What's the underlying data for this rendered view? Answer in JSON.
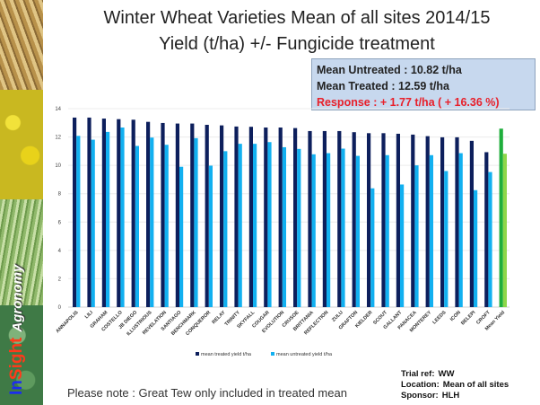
{
  "title_line1": "Winter Wheat Varieties Mean of all sites 2014/15",
  "title_line2": "Yield (t/ha) +/- Fungicide treatment",
  "summary": {
    "untreated": "Mean Untreated : 10.82 t/ha",
    "treated": "Mean Treated : 12.59 t/ha",
    "response": "Response : + 1.77 t/ha ( + 16.36 %)"
  },
  "logo": {
    "in": "In",
    "sight": "Sight",
    "agronomy": "Agronomy"
  },
  "note": "Please note : Great Tew only included in treated mean",
  "trial": {
    "ref_label": "Trial ref:",
    "ref_value": "WW",
    "location_label": "Location:",
    "location_value": "Mean of all sites",
    "sponsor_label": "Sponsor:",
    "sponsor_value": "HLH"
  },
  "colors": {
    "treated": "#0d1f5c",
    "untreated": "#12b0f0",
    "mean_treated": "#1fae3c",
    "mean_untreated": "#8ed64a",
    "response_text": "#e8202a",
    "summary_bg": "#c7d8ee"
  },
  "chart_data": {
    "type": "bar",
    "title": "",
    "xlabel": "",
    "ylabel": "",
    "ylim": [
      0,
      14
    ],
    "yticks": [
      0,
      2,
      4,
      6,
      8,
      10,
      12,
      14
    ],
    "grid": true,
    "legend_position": "bottom",
    "categories": [
      "ANNAPOLIS",
      "LILI",
      "GRAHAM",
      "COSTELLO",
      "JB DIEGO",
      "ILLUSTRIOUS",
      "REVELATION",
      "SANTIAGO",
      "BENCHMARK",
      "CONQUEROR",
      "RELAY",
      "TRINITY",
      "SKYFALL",
      "COUGAR",
      "EVOLUTION",
      "CRUSOE",
      "BRITTANIA",
      "REFLECTION",
      "ZULU",
      "GRAFTON",
      "KIELDER",
      "SCOUT",
      "GALLANT",
      "PANACEA",
      "MONTEREY",
      "LEEDS",
      "ICON",
      "BELEPI",
      "CROFT",
      "Mean Yield"
    ],
    "series": [
      {
        "name": "mean treated yield t/ha",
        "values": [
          13.37,
          13.37,
          13.3,
          13.26,
          13.22,
          13.07,
          12.99,
          12.95,
          12.95,
          12.86,
          12.82,
          12.74,
          12.72,
          12.67,
          12.67,
          12.63,
          12.42,
          12.42,
          12.42,
          12.34,
          12.27,
          12.27,
          12.23,
          12.17,
          12.06,
          11.98,
          11.98,
          11.73,
          10.93,
          12.59
        ]
      },
      {
        "name": "mean untreated yield t/ha",
        "values": [
          12.08,
          11.81,
          12.36,
          12.67,
          11.37,
          11.96,
          11.45,
          9.9,
          11.92,
          9.98,
          11.0,
          11.52,
          11.52,
          11.64,
          11.28,
          11.16,
          10.78,
          10.86,
          11.18,
          10.67,
          8.38,
          10.72,
          8.65,
          10.0,
          10.72,
          9.6,
          10.86,
          8.25,
          9.53,
          10.82
        ]
      }
    ]
  }
}
